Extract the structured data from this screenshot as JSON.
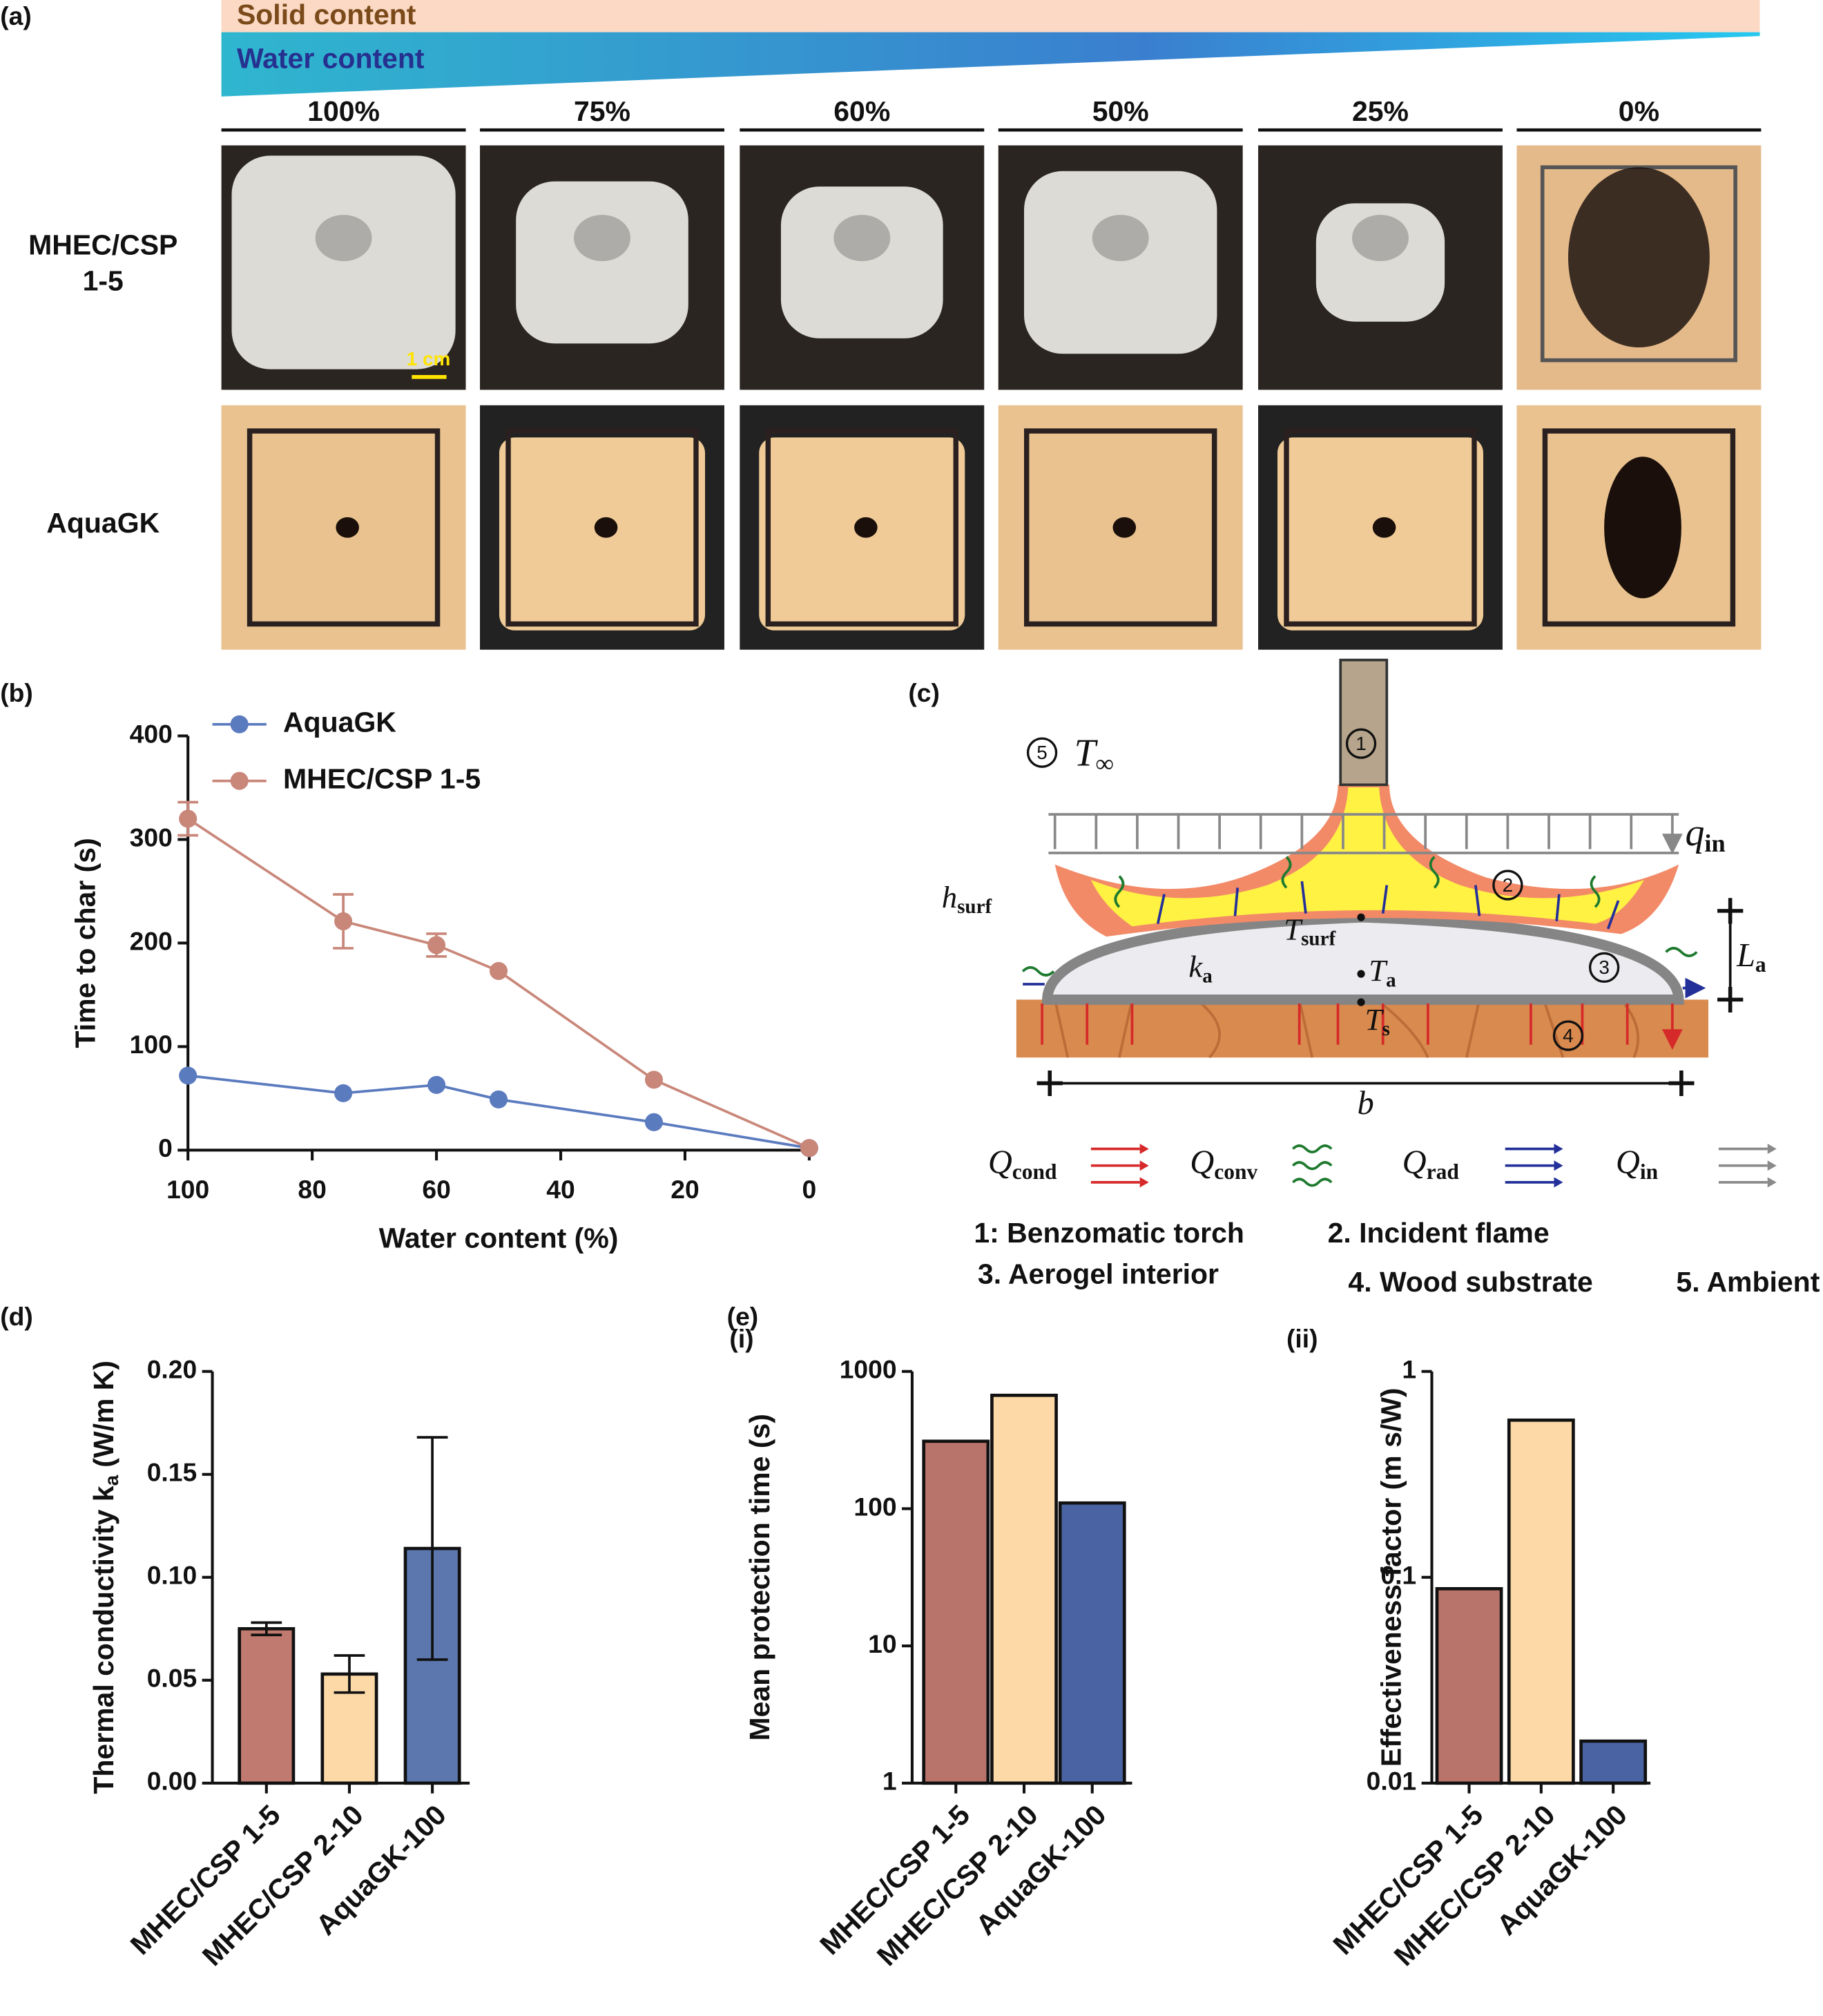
{
  "panel_a": {
    "label": "(a)",
    "gradient_labels": [
      "Solid content",
      "Water content"
    ],
    "column_labels": [
      "100%",
      "75%",
      "60%",
      "50%",
      "25%",
      "0%"
    ],
    "row_labels": [
      [
        "MHEC/CSP",
        "1-5"
      ],
      [
        "AquaGK"
      ]
    ],
    "scale_bar": "1 cm"
  },
  "panel_c": {
    "label": "(c)",
    "markers": [
      "1",
      "2",
      "3",
      "4",
      "5"
    ],
    "symbols": {
      "t_inf": {
        "base": "T",
        "sub": "∞"
      },
      "q_in": {
        "base": "q",
        "sub": "in"
      },
      "h_surf": {
        "base": "h",
        "sub": "surf"
      },
      "t_surf": {
        "base": "T",
        "sub": "surf"
      },
      "k_a": {
        "base": "k",
        "sub": "a"
      },
      "t_a": {
        "base": "T",
        "sub": "a"
      },
      "t_s": {
        "base": "T",
        "sub": "s"
      },
      "l_a": {
        "base": "L",
        "sub": "a"
      },
      "b": {
        "base": "b"
      }
    },
    "heat_legend": [
      {
        "base": "Q",
        "sub": "cond",
        "color": "#d62a2a"
      },
      {
        "base": "Q",
        "sub": "conv",
        "color": "#1e7a2e"
      },
      {
        "base": "Q",
        "sub": "rad",
        "color": "#23309a"
      },
      {
        "base": "Q",
        "sub": "in",
        "color": "#8a8a8a"
      }
    ],
    "key": [
      "1: Benzomatic torch",
      "2. Incident flame",
      "3. Aerogel interior",
      "4. Wood substrate",
      "5. Ambient"
    ]
  },
  "chart_data": [
    {
      "type": "line",
      "panel_label": "(b)",
      "x": [
        100,
        75,
        60,
        50,
        25,
        0
      ],
      "xlim": [
        100,
        0
      ],
      "xticks": [
        100,
        80,
        60,
        40,
        20,
        0
      ],
      "ylim": [
        0,
        400
      ],
      "yticks": [
        0,
        100,
        200,
        300,
        400
      ],
      "x_label": "Water content (%)",
      "y_label": "Time to char (s)",
      "legend": "upper left",
      "series": [
        {
          "name": "AquaGK",
          "color": "#5b7bbf",
          "values": [
            72,
            55,
            63,
            49,
            27,
            2
          ]
        },
        {
          "name": "MHEC/CSP 1-5",
          "color": "#c9877a",
          "values": [
            320,
            221,
            198,
            173,
            68,
            2
          ],
          "errors": [
            16,
            26,
            11,
            null,
            null,
            null
          ]
        }
      ]
    },
    {
      "type": "bar",
      "panel_label": "(d)",
      "categories": [
        "MHEC/CSP 1-5",
        "MHEC/CSP 2-10",
        "AquaGK-100"
      ],
      "values": [
        0.075,
        0.053,
        0.114
      ],
      "errors": [
        0.003,
        0.009,
        0.054
      ],
      "colors": [
        "#c17a6f",
        "#fcd9a6",
        "#5b77ad"
      ],
      "ylim": [
        0,
        0.2
      ],
      "yticks": [
        {
          "value": 0,
          "label": "0.00"
        },
        {
          "value": 0.05,
          "label": "0.05"
        },
        {
          "value": 0.1,
          "label": "0.10"
        },
        {
          "value": 0.15,
          "label": "0.15"
        },
        {
          "value": 0.2,
          "label": "0.20"
        }
      ],
      "y_label": [
        "Thermal conductivity k",
        "a",
        "(W/m K)"
      ]
    },
    {
      "type": "bar",
      "panel_label": "(e)",
      "subtitle": "(i)",
      "log_scale": true,
      "categories": [
        "MHEC/CSP 1-5",
        "MHEC/CSP 2-10",
        "AquaGK-100"
      ],
      "values": [
        310,
        670,
        110
      ],
      "colors": [
        "#b8736a",
        "#fcd9a6",
        "#4a63a3"
      ],
      "ylim": [
        1,
        1000
      ],
      "yticks": [
        1,
        10,
        100,
        1000
      ],
      "y_label": [
        "Mean protection time (s)"
      ]
    },
    {
      "type": "bar",
      "subtitle": "(ii)",
      "log_scale": true,
      "categories": [
        "MHEC/CSP 1-5",
        "MHEC/CSP 2-10",
        "AquaGK-100"
      ],
      "values": [
        0.088,
        0.58,
        0.016
      ],
      "colors": [
        "#b8736a",
        "#fcd9a6",
        "#4a63a3"
      ],
      "ylim": [
        0.01,
        1
      ],
      "yticks": [
        0.01,
        0.1,
        1
      ],
      "y_label": [
        "Effectiveness factor (m s/W)"
      ]
    }
  ]
}
